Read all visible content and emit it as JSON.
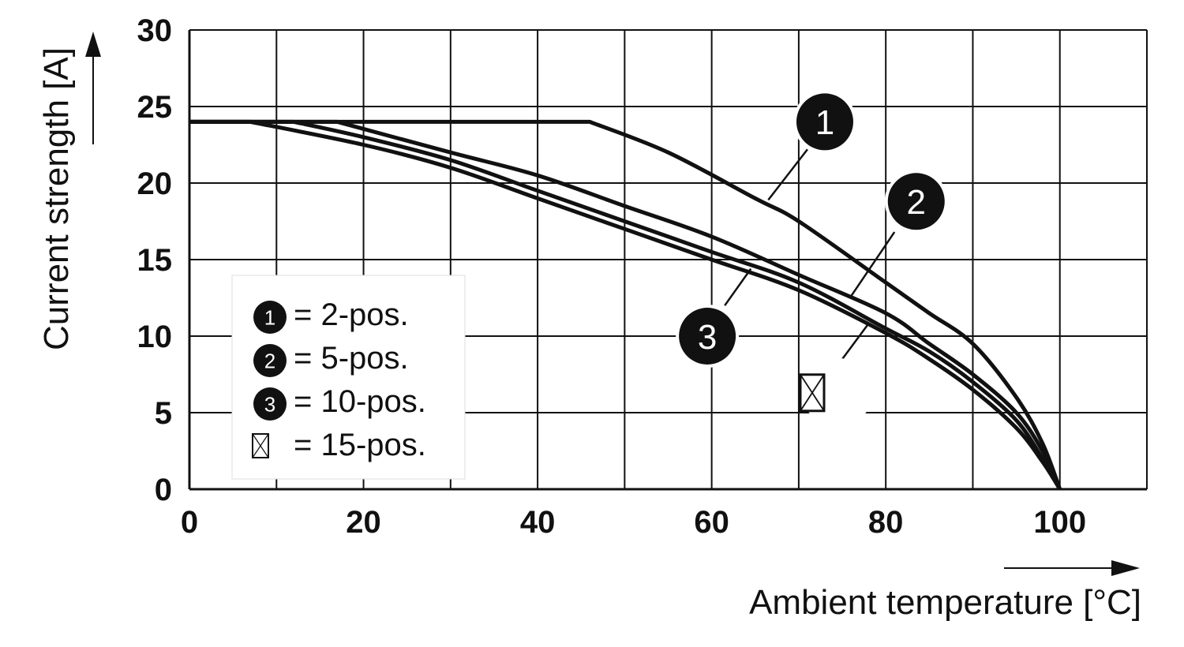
{
  "chart_data": {
    "type": "line",
    "xlabel": "Ambient temperature [°C]",
    "ylabel": "Current strength [A]",
    "xlim": [
      0,
      110
    ],
    "ylim": [
      0,
      30
    ],
    "x_ticks": [
      "0",
      "20",
      "40",
      "60",
      "80",
      "100"
    ],
    "y_ticks": [
      "0",
      "5",
      "10",
      "15",
      "20",
      "25",
      "30"
    ],
    "grid": true,
    "legend_position": "bottom-left",
    "colors": {
      "line": "#111111",
      "badge": "#111111",
      "background": "#ffffff"
    },
    "series": [
      {
        "name": "2-pos.",
        "marker": "1",
        "x": [
          0,
          46,
          55,
          65,
          70,
          80,
          85,
          90,
          95,
          98,
          100
        ],
        "y": [
          24,
          24,
          22,
          19,
          17.5,
          13.5,
          11.5,
          9.5,
          6,
          3,
          0
        ]
      },
      {
        "name": "5-pos.",
        "marker": "2",
        "x": [
          0,
          17,
          30,
          40,
          50,
          60,
          70,
          80,
          85,
          90,
          95,
          98,
          100
        ],
        "y": [
          24,
          24,
          22,
          20.5,
          18.5,
          16.5,
          14,
          11.5,
          9.5,
          7.5,
          5,
          2.5,
          0
        ]
      },
      {
        "name": "10-pos.",
        "marker": "3",
        "x": [
          0,
          12,
          20,
          30,
          40,
          50,
          60,
          70,
          80,
          85,
          90,
          95,
          98,
          100
        ],
        "y": [
          24,
          24,
          23,
          21.5,
          19.5,
          17.5,
          15.5,
          13.5,
          10.5,
          9,
          7,
          4.5,
          2,
          0
        ]
      },
      {
        "name": "15-pos.",
        "marker": "crossed-box",
        "x": [
          0,
          7,
          20,
          30,
          40,
          50,
          60,
          70,
          80,
          85,
          90,
          95,
          98,
          100
        ],
        "y": [
          24,
          24,
          22.5,
          21,
          19,
          17,
          15,
          13,
          10.2,
          8.5,
          6.5,
          4,
          1.8,
          0
        ]
      }
    ],
    "legend": [
      {
        "marker": "1",
        "label": "= 2-pos."
      },
      {
        "marker": "2",
        "label": "= 5-pos."
      },
      {
        "marker": "3",
        "label": "= 10-pos."
      },
      {
        "marker": "crossed-box",
        "label": "= 15-pos."
      }
    ],
    "callouts": [
      {
        "marker": "1",
        "x": 73,
        "y": 24
      },
      {
        "marker": "2",
        "x": 83.5,
        "y": 18.8
      },
      {
        "marker": "3",
        "x": 59.5,
        "y": 10
      },
      {
        "marker": "crossed-box",
        "x": 73,
        "y": 6.3
      }
    ]
  }
}
